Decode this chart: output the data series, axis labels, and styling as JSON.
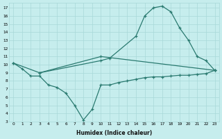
{
  "xlabel": "Humidex (Indice chaleur)",
  "bg_color": "#c6eded",
  "grid_color": "#a8d8d8",
  "line_color": "#2a7a70",
  "xlim": [
    -0.5,
    23.5
  ],
  "ylim": [
    3,
    17.6
  ],
  "xticks": [
    0,
    1,
    2,
    3,
    4,
    5,
    6,
    7,
    8,
    9,
    10,
    11,
    12,
    13,
    14,
    15,
    16,
    17,
    18,
    19,
    20,
    21,
    22,
    23
  ],
  "yticks": [
    3,
    4,
    5,
    6,
    7,
    8,
    9,
    10,
    11,
    12,
    13,
    14,
    15,
    16,
    17
  ],
  "line1_x": [
    0,
    3,
    10,
    23
  ],
  "line1_y": [
    10.2,
    9.0,
    11.0,
    9.3
  ],
  "line2_x": [
    0,
    1,
    2,
    3,
    4,
    5,
    6,
    7,
    8,
    9,
    10,
    11,
    12,
    13,
    14,
    15,
    16,
    17,
    18,
    19,
    20,
    21,
    22,
    23
  ],
  "line2_y": [
    10.2,
    9.5,
    8.6,
    8.6,
    7.5,
    7.2,
    6.5,
    5.0,
    3.2,
    4.5,
    7.5,
    7.5,
    7.8,
    8.0,
    8.2,
    8.4,
    8.5,
    8.5,
    8.6,
    8.7,
    8.7,
    8.8,
    8.9,
    9.3
  ],
  "line3_x": [
    3,
    10,
    11,
    14,
    15,
    16,
    17,
    18,
    19,
    20,
    21,
    22,
    23
  ],
  "line3_y": [
    9.0,
    10.5,
    10.8,
    13.5,
    16.0,
    17.0,
    17.2,
    16.5,
    14.5,
    13.0,
    11.0,
    10.5,
    9.3
  ]
}
